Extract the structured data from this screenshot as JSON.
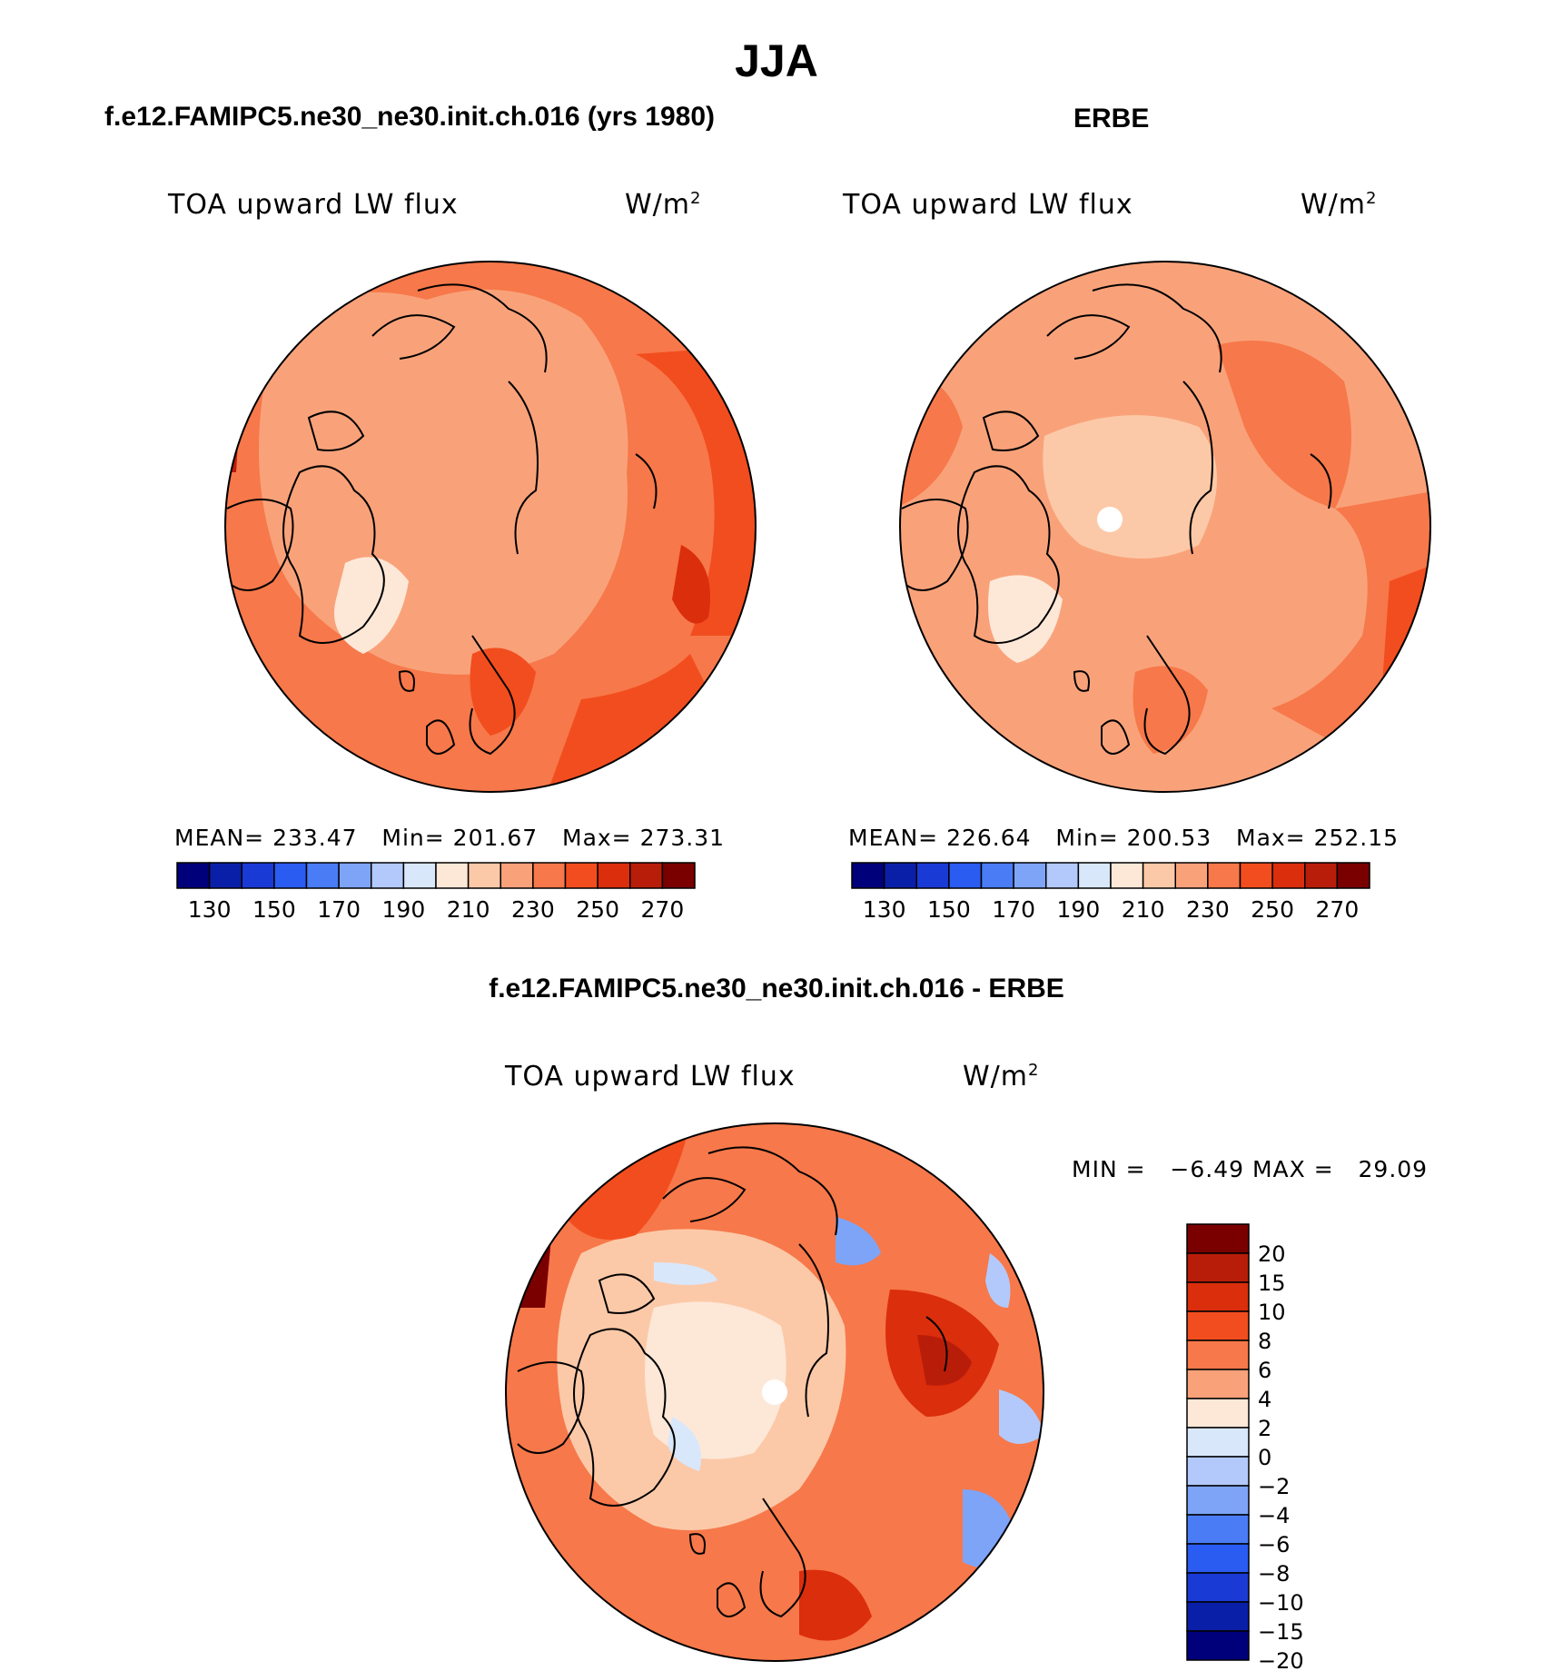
{
  "page_title": "JJA",
  "panels": {
    "model": {
      "header": "f.e12.FAMIPC5.ne30_ne30.init.ch.016 (yrs 1980)",
      "variable": "TOA upward LW flux",
      "units": "W/m",
      "units_sup": "2",
      "stats": {
        "mean_label": "MEAN=",
        "mean": "233.47",
        "min_label": "Min=",
        "min": "201.67",
        "max_label": "Max=",
        "max": "273.31"
      }
    },
    "obs": {
      "header": "ERBE",
      "variable": "TOA upward LW flux",
      "units": "W/m",
      "units_sup": "2",
      "stats": {
        "mean_label": "MEAN=",
        "mean": "226.64",
        "min_label": "Min=",
        "min": "200.53",
        "max_label": "Max=",
        "max": "252.15"
      }
    },
    "diff": {
      "header": "f.e12.FAMIPC5.ne30_ne30.init.ch.016 - ERBE",
      "variable": "TOA upward LW flux",
      "units": "W/m",
      "units_sup": "2",
      "stats": {
        "min_label": "MIN =",
        "min": "−6.49",
        "max_label": "MAX =",
        "max": "29.09"
      }
    }
  },
  "colors": {
    "abs_scale": [
      "#00007a",
      "#0a1fa8",
      "#1a3ad6",
      "#2a5cf2",
      "#4a7cf5",
      "#7ea4f8",
      "#b3c9fb",
      "#d9e7fb",
      "#fde8d8",
      "#fcc9a8",
      "#f9a27a",
      "#f7784a",
      "#f24d1e",
      "#db2e0d",
      "#b81d0a",
      "#7a0000"
    ],
    "diff_scale": [
      "#7a0000",
      "#b81d0a",
      "#db2e0d",
      "#f24d1e",
      "#f7784a",
      "#f9a27a",
      "#fde8d8",
      "#d9e7fb",
      "#b3c9fb",
      "#7ea4f8",
      "#4a7cf5",
      "#2a5cf2",
      "#1a3ad6",
      "#0a1fa8",
      "#00007a"
    ],
    "land_outline": "#000000"
  },
  "chart_data": [
    {
      "type": "heatmap",
      "title": "f.e12.FAMIPC5.ne30_ne30.init.ch.016 (yrs 1980)",
      "variable": "TOA upward LW flux",
      "units": "W/m2",
      "projection": "north polar stereographic",
      "colorbar_orientation": "horizontal",
      "colorbar_levels": [
        130,
        140,
        150,
        160,
        170,
        180,
        190,
        200,
        210,
        220,
        230,
        240,
        250,
        260,
        270
      ],
      "colorbar_tick_labels": [
        "130",
        "150",
        "170",
        "190",
        "210",
        "230",
        "250",
        "270"
      ],
      "mean": 233.47,
      "min": 201.67,
      "max": 273.31
    },
    {
      "type": "heatmap",
      "title": "ERBE",
      "variable": "TOA upward LW flux",
      "units": "W/m2",
      "projection": "north polar stereographic",
      "colorbar_orientation": "horizontal",
      "colorbar_levels": [
        130,
        140,
        150,
        160,
        170,
        180,
        190,
        200,
        210,
        220,
        230,
        240,
        250,
        260,
        270
      ],
      "colorbar_tick_labels": [
        "130",
        "150",
        "170",
        "190",
        "210",
        "230",
        "250",
        "270"
      ],
      "mean": 226.64,
      "min": 200.53,
      "max": 252.15
    },
    {
      "type": "heatmap",
      "title": "f.e12.FAMIPC5.ne30_ne30.init.ch.016 - ERBE",
      "variable": "TOA upward LW flux",
      "units": "W/m2",
      "projection": "north polar stereographic",
      "colorbar_orientation": "vertical",
      "colorbar_levels": [
        20,
        15,
        10,
        8,
        6,
        4,
        2,
        0,
        -2,
        -4,
        -6,
        -8,
        -10,
        -15,
        -20
      ],
      "colorbar_tick_labels": [
        "20",
        "15",
        "10",
        "8",
        "6",
        "4",
        "2",
        "0",
        "−2",
        "−4",
        "−6",
        "−8",
        "−10",
        "−15",
        "−20"
      ],
      "min": -6.49,
      "max": 29.09
    }
  ]
}
